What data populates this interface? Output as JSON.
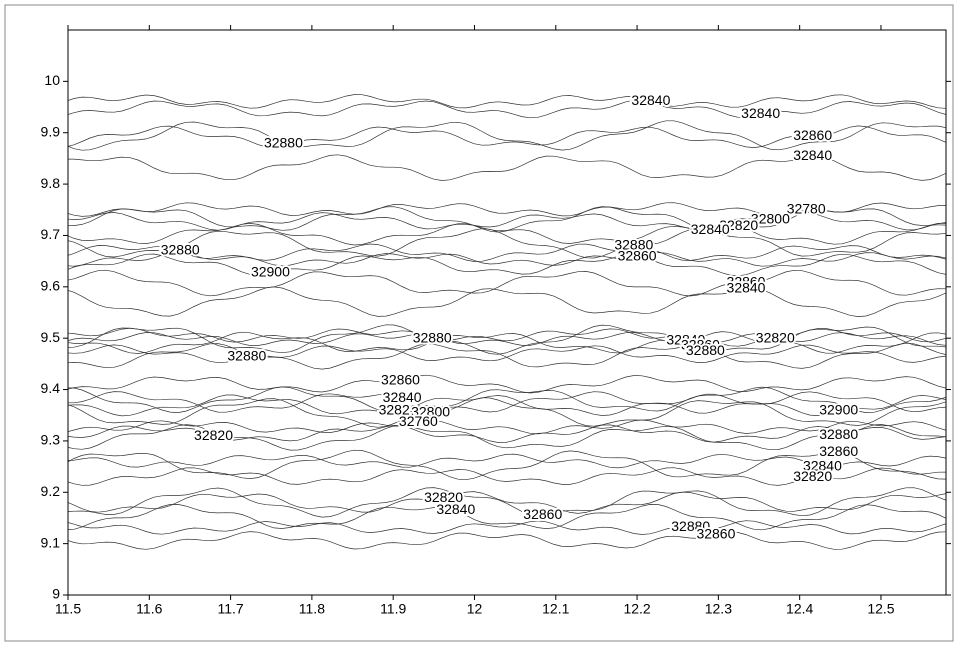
{
  "chart_data": {
    "type": "contour",
    "xlim": [
      11.5,
      12.58
    ],
    "ylim": [
      9,
      10.1
    ],
    "xticks": [
      11.5,
      11.6,
      11.7,
      11.8,
      11.9,
      12,
      12.1,
      12.2,
      12.3,
      12.4,
      12.5
    ],
    "yticks": [
      9,
      9.1,
      9.2,
      9.3,
      9.4,
      9.5,
      9.6,
      9.7,
      9.8,
      9.9,
      10
    ],
    "color": "#333333",
    "contour_labels": [
      {
        "value": 32840,
        "x": 12.217,
        "y": 9.961
      },
      {
        "value": 32840,
        "x": 12.352,
        "y": 9.936
      },
      {
        "value": 32860,
        "x": 12.416,
        "y": 9.893
      },
      {
        "value": 32840,
        "x": 12.416,
        "y": 9.854
      },
      {
        "value": 32880,
        "x": 11.765,
        "y": 9.878
      },
      {
        "value": 32780,
        "x": 12.408,
        "y": 9.75
      },
      {
        "value": 32800,
        "x": 12.364,
        "y": 9.73
      },
      {
        "value": 32820,
        "x": 12.325,
        "y": 9.718
      },
      {
        "value": 32840,
        "x": 12.29,
        "y": 9.71
      },
      {
        "value": 32880,
        "x": 12.196,
        "y": 9.68
      },
      {
        "value": 32860,
        "x": 12.2,
        "y": 9.658
      },
      {
        "value": 32880,
        "x": 11.638,
        "y": 9.67
      },
      {
        "value": 32900,
        "x": 11.749,
        "y": 9.627
      },
      {
        "value": 32860,
        "x": 12.334,
        "y": 9.608
      },
      {
        "value": 32840,
        "x": 12.334,
        "y": 9.596
      },
      {
        "value": 32880,
        "x": 11.948,
        "y": 9.499
      },
      {
        "value": 32880,
        "x": 11.72,
        "y": 9.464
      },
      {
        "value": 32840,
        "x": 12.26,
        "y": 9.495
      },
      {
        "value": 32860,
        "x": 12.278,
        "y": 9.485
      },
      {
        "value": 32880,
        "x": 12.284,
        "y": 9.474
      },
      {
        "value": 32820,
        "x": 12.37,
        "y": 9.499
      },
      {
        "value": 32860,
        "x": 11.909,
        "y": 9.417
      },
      {
        "value": 32840,
        "x": 11.911,
        "y": 9.383
      },
      {
        "value": 32820,
        "x": 11.906,
        "y": 9.359
      },
      {
        "value": 32800,
        "x": 11.946,
        "y": 9.355
      },
      {
        "value": 32760,
        "x": 11.931,
        "y": 9.336
      },
      {
        "value": 32820,
        "x": 11.679,
        "y": 9.309
      },
      {
        "value": 32900,
        "x": 12.448,
        "y": 9.359
      },
      {
        "value": 32880,
        "x": 12.448,
        "y": 9.311
      },
      {
        "value": 32860,
        "x": 12.448,
        "y": 9.278
      },
      {
        "value": 32840,
        "x": 12.428,
        "y": 9.25
      },
      {
        "value": 32820,
        "x": 12.416,
        "y": 9.229
      },
      {
        "value": 32820,
        "x": 11.962,
        "y": 9.188
      },
      {
        "value": 32840,
        "x": 11.977,
        "y": 9.165
      },
      {
        "value": 32860,
        "x": 12.084,
        "y": 9.155
      },
      {
        "value": 32880,
        "x": 12.266,
        "y": 9.132
      },
      {
        "value": 32860,
        "x": 12.297,
        "y": 9.117
      }
    ]
  }
}
